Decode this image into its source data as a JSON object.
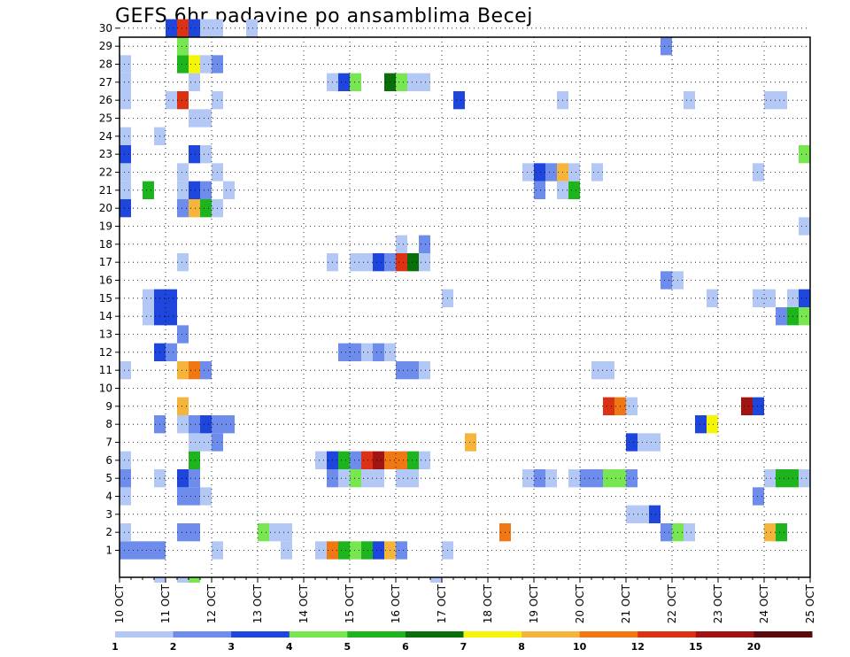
{
  "chart_data": {
    "type": "heatmap",
    "title": "GEFS 6hr padavine po ansamblima Becej",
    "y_members": [
      1,
      2,
      3,
      4,
      5,
      6,
      7,
      8,
      9,
      10,
      11,
      12,
      13,
      14,
      15,
      16,
      17,
      18,
      19,
      20,
      21,
      22,
      23,
      24,
      25,
      26,
      27,
      28,
      29,
      30
    ],
    "x_tick_labels": [
      "10 OCT",
      "11 OCT",
      "12 OCT",
      "13 OCT",
      "14 OCT",
      "15 OCT",
      "16 OCT",
      "17 OCT",
      "18 OCT",
      "19 OCT",
      "20 OCT",
      "21 OCT",
      "22 OCT",
      "23 OCT",
      "24 OCT",
      "25 OCT"
    ],
    "time_step_hours": 6,
    "grid": true,
    "colorbar": {
      "tick_labels": [
        "1",
        "2",
        "3",
        "4",
        "5",
        "6",
        "7",
        "8",
        "10",
        "12",
        "15",
        "20"
      ],
      "colors": [
        "#b4c8f5",
        "#6e8ceb",
        "#1e46dc",
        "#78e650",
        "#1eb41e",
        "#0a6e0a",
        "#f5f50a",
        "#f5b43c",
        "#f07814",
        "#dc3214",
        "#a01414",
        "#5a0a0a"
      ]
    },
    "cells": [
      [
        1,
        0,
        4,
        2
      ],
      [
        1,
        8,
        9,
        1
      ],
      [
        1,
        14,
        15,
        1
      ],
      [
        1,
        17,
        18,
        1
      ],
      [
        1,
        18,
        19,
        9
      ],
      [
        1,
        19,
        20,
        5
      ],
      [
        1,
        20,
        21,
        4
      ],
      [
        1,
        21,
        22,
        5
      ],
      [
        1,
        22,
        23,
        3
      ],
      [
        1,
        23,
        24,
        8
      ],
      [
        1,
        24,
        25,
        2
      ],
      [
        1,
        28,
        29,
        1
      ],
      [
        2,
        0,
        1,
        1
      ],
      [
        2,
        5,
        7,
        2
      ],
      [
        2,
        12,
        13,
        4
      ],
      [
        2,
        13,
        15,
        1
      ],
      [
        2,
        33,
        34,
        9
      ],
      [
        2,
        47,
        48,
        2
      ],
      [
        2,
        48,
        49,
        4
      ],
      [
        2,
        49,
        50,
        1
      ],
      [
        2,
        56,
        57,
        8
      ],
      [
        2,
        57,
        58,
        5
      ],
      [
        3,
        44,
        46,
        1
      ],
      [
        3,
        46,
        47,
        3
      ],
      [
        4,
        0,
        1,
        1
      ],
      [
        4,
        5,
        7,
        2
      ],
      [
        4,
        7,
        8,
        1
      ],
      [
        4,
        55,
        56,
        2
      ],
      [
        5,
        0,
        1,
        2
      ],
      [
        5,
        3,
        4,
        1
      ],
      [
        5,
        5,
        6,
        3
      ],
      [
        5,
        6,
        7,
        2
      ],
      [
        5,
        18,
        19,
        2
      ],
      [
        5,
        19,
        20,
        1
      ],
      [
        5,
        20,
        21,
        4
      ],
      [
        5,
        21,
        23,
        1
      ],
      [
        5,
        24,
        26,
        1
      ],
      [
        5,
        35,
        36,
        1
      ],
      [
        5,
        36,
        37,
        2
      ],
      [
        5,
        37,
        38,
        1
      ],
      [
        5,
        39,
        40,
        1
      ],
      [
        5,
        40,
        42,
        2
      ],
      [
        5,
        42,
        44,
        4
      ],
      [
        5,
        44,
        45,
        2
      ],
      [
        5,
        56,
        57,
        1
      ],
      [
        5,
        57,
        59,
        5
      ],
      [
        5,
        59,
        60,
        1
      ],
      [
        6,
        0,
        1,
        1
      ],
      [
        6,
        6,
        7,
        5
      ],
      [
        6,
        17,
        18,
        1
      ],
      [
        6,
        18,
        19,
        3
      ],
      [
        6,
        19,
        20,
        5
      ],
      [
        6,
        20,
        21,
        2
      ],
      [
        6,
        21,
        22,
        10
      ],
      [
        6,
        22,
        23,
        11
      ],
      [
        6,
        23,
        24,
        9
      ],
      [
        6,
        24,
        25,
        9
      ],
      [
        6,
        25,
        26,
        5
      ],
      [
        6,
        26,
        27,
        1
      ],
      [
        7,
        6,
        8,
        1
      ],
      [
        7,
        8,
        9,
        2
      ],
      [
        7,
        30,
        31,
        8
      ],
      [
        7,
        44,
        45,
        3
      ],
      [
        7,
        45,
        47,
        1
      ],
      [
        8,
        3,
        4,
        2
      ],
      [
        8,
        5,
        6,
        1
      ],
      [
        8,
        6,
        7,
        2
      ],
      [
        8,
        7,
        8,
        3
      ],
      [
        8,
        8,
        10,
        2
      ],
      [
        8,
        50,
        51,
        3
      ],
      [
        8,
        51,
        52,
        7
      ],
      [
        9,
        5,
        6,
        8
      ],
      [
        9,
        42,
        43,
        10
      ],
      [
        9,
        43,
        44,
        9
      ],
      [
        9,
        44,
        45,
        1
      ],
      [
        9,
        54,
        55,
        11
      ],
      [
        9,
        55,
        56,
        3
      ],
      [
        11,
        0,
        1,
        1
      ],
      [
        11,
        5,
        6,
        8
      ],
      [
        11,
        6,
        7,
        9
      ],
      [
        11,
        7,
        8,
        2
      ],
      [
        11,
        24,
        26,
        2
      ],
      [
        11,
        26,
        27,
        1
      ],
      [
        11,
        41,
        43,
        1
      ],
      [
        12,
        3,
        4,
        3
      ],
      [
        12,
        4,
        5,
        2
      ],
      [
        12,
        19,
        21,
        2
      ],
      [
        12,
        21,
        22,
        1
      ],
      [
        12,
        22,
        23,
        2
      ],
      [
        12,
        23,
        24,
        1
      ],
      [
        13,
        5,
        6,
        2
      ],
      [
        14,
        2,
        3,
        1
      ],
      [
        14,
        3,
        5,
        3
      ],
      [
        14,
        57,
        58,
        2
      ],
      [
        14,
        58,
        59,
        5
      ],
      [
        14,
        59,
        60,
        4
      ],
      [
        15,
        2,
        3,
        1
      ],
      [
        15,
        3,
        5,
        3
      ],
      [
        15,
        28,
        29,
        1
      ],
      [
        15,
        51,
        52,
        1
      ],
      [
        15,
        55,
        57,
        1
      ],
      [
        15,
        58,
        59,
        1
      ],
      [
        15,
        59,
        60,
        3
      ],
      [
        16,
        47,
        48,
        2
      ],
      [
        16,
        48,
        49,
        1
      ],
      [
        17,
        5,
        6,
        1
      ],
      [
        17,
        18,
        19,
        1
      ],
      [
        17,
        20,
        22,
        1
      ],
      [
        17,
        22,
        23,
        3
      ],
      [
        17,
        23,
        24,
        2
      ],
      [
        17,
        24,
        25,
        10
      ],
      [
        17,
        25,
        26,
        6
      ],
      [
        17,
        26,
        27,
        1
      ],
      [
        18,
        24,
        25,
        1
      ],
      [
        18,
        26,
        27,
        2
      ],
      [
        19,
        59,
        60,
        1
      ],
      [
        20,
        0,
        1,
        3
      ],
      [
        20,
        5,
        6,
        2
      ],
      [
        20,
        6,
        7,
        8
      ],
      [
        20,
        7,
        8,
        5
      ],
      [
        20,
        8,
        9,
        1
      ],
      [
        21,
        0,
        1,
        1
      ],
      [
        21,
        2,
        3,
        5
      ],
      [
        21,
        5,
        6,
        1
      ],
      [
        21,
        6,
        7,
        3
      ],
      [
        21,
        7,
        8,
        2
      ],
      [
        21,
        9,
        10,
        1
      ],
      [
        21,
        36,
        37,
        2
      ],
      [
        21,
        38,
        39,
        1
      ],
      [
        21,
        39,
        40,
        5
      ],
      [
        22,
        0,
        1,
        1
      ],
      [
        22,
        5,
        6,
        1
      ],
      [
        22,
        8,
        9,
        1
      ],
      [
        22,
        35,
        36,
        1
      ],
      [
        22,
        36,
        37,
        3
      ],
      [
        22,
        37,
        38,
        2
      ],
      [
        22,
        38,
        39,
        8
      ],
      [
        22,
        39,
        40,
        1
      ],
      [
        22,
        41,
        42,
        1
      ],
      [
        22,
        55,
        56,
        1
      ],
      [
        23,
        0,
        1,
        3
      ],
      [
        23,
        6,
        7,
        3
      ],
      [
        23,
        7,
        8,
        1
      ],
      [
        23,
        59,
        60,
        4
      ],
      [
        24,
        0,
        1,
        1
      ],
      [
        24,
        3,
        4,
        1
      ],
      [
        25,
        6,
        8,
        1
      ],
      [
        26,
        0,
        1,
        1
      ],
      [
        26,
        4,
        5,
        1
      ],
      [
        26,
        5,
        6,
        10
      ],
      [
        26,
        8,
        9,
        1
      ],
      [
        26,
        29,
        30,
        3
      ],
      [
        26,
        38,
        39,
        1
      ],
      [
        26,
        49,
        50,
        1
      ],
      [
        26,
        56,
        58,
        1
      ],
      [
        27,
        0,
        1,
        1
      ],
      [
        27,
        6,
        7,
        1
      ],
      [
        27,
        18,
        19,
        1
      ],
      [
        27,
        19,
        20,
        3
      ],
      [
        27,
        20,
        21,
        4
      ],
      [
        27,
        23,
        24,
        6
      ],
      [
        27,
        24,
        25,
        4
      ],
      [
        27,
        25,
        27,
        1
      ],
      [
        28,
        0,
        1,
        1
      ],
      [
        28,
        5,
        6,
        5
      ],
      [
        28,
        6,
        7,
        7
      ],
      [
        28,
        7,
        8,
        1
      ],
      [
        28,
        8,
        9,
        2
      ],
      [
        29,
        5,
        6,
        4
      ],
      [
        29,
        47,
        48,
        2
      ],
      [
        30,
        4,
        5,
        3
      ],
      [
        30,
        5,
        6,
        10
      ],
      [
        30,
        6,
        7,
        3
      ],
      [
        30,
        7,
        9,
        1
      ],
      [
        30,
        11,
        12,
        1
      ],
      [
        0,
        3,
        4,
        1
      ],
      [
        0,
        5,
        6,
        1
      ],
      [
        0,
        6,
        7,
        4
      ],
      [
        0,
        27,
        28,
        1
      ]
    ]
  }
}
